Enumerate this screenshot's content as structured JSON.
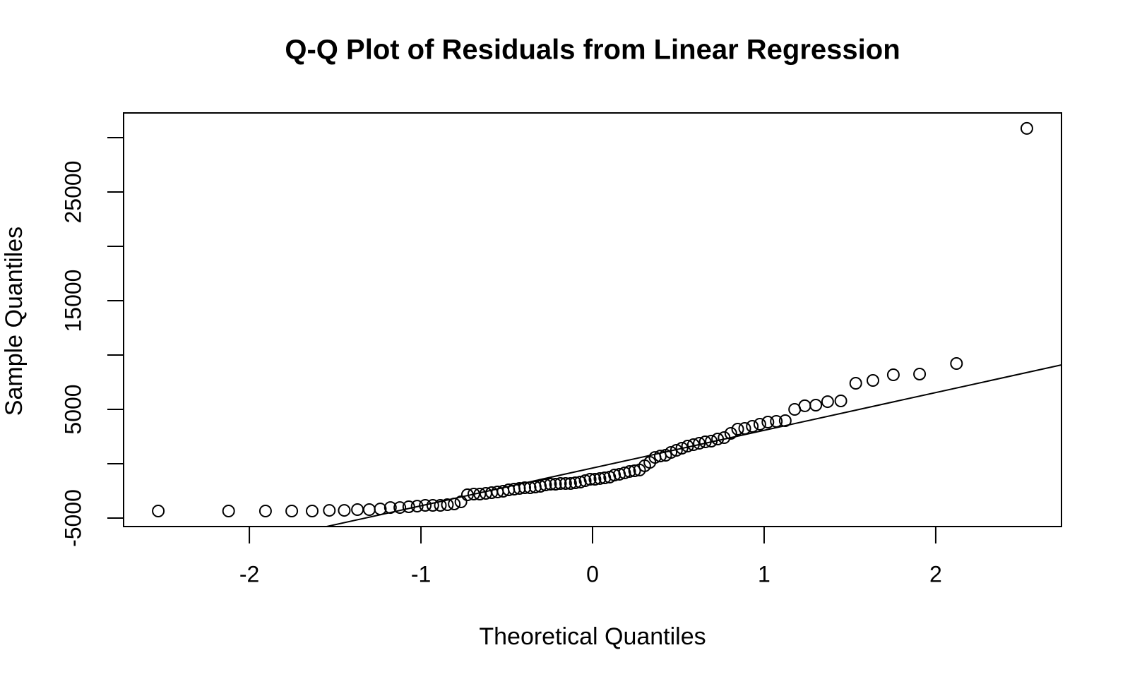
{
  "chart_data": {
    "type": "qq",
    "title": "Q-Q Plot of Residuals from Linear Regression",
    "x_label": "Theoretical Quantiles",
    "y_label": "Sample Quantiles",
    "x": [
      -2.531,
      -2.121,
      -1.906,
      -1.753,
      -1.634,
      -1.534,
      -1.447,
      -1.37,
      -1.301,
      -1.237,
      -1.178,
      -1.123,
      -1.071,
      -1.022,
      -0.975,
      -0.931,
      -0.887,
      -0.846,
      -0.806,
      -0.767,
      -0.729,
      -0.692,
      -0.657,
      -0.622,
      -0.588,
      -0.554,
      -0.521,
      -0.489,
      -0.457,
      -0.426,
      -0.395,
      -0.364,
      -0.334,
      -0.304,
      -0.274,
      -0.245,
      -0.216,
      -0.187,
      -0.157,
      -0.128,
      -0.1,
      -0.071,
      -0.043,
      -0.014,
      0.014,
      0.043,
      0.071,
      0.1,
      0.128,
      0.157,
      0.187,
      0.216,
      0.245,
      0.274,
      0.304,
      0.334,
      0.364,
      0.395,
      0.426,
      0.457,
      0.489,
      0.521,
      0.554,
      0.588,
      0.622,
      0.657,
      0.692,
      0.729,
      0.767,
      0.806,
      0.846,
      0.887,
      0.931,
      0.975,
      1.022,
      1.071,
      1.123,
      1.178,
      1.237,
      1.301,
      1.37,
      1.447,
      1.534,
      1.634,
      1.753,
      1.906,
      2.121,
      2.531
    ],
    "values": [
      -4350,
      -4350,
      -4350,
      -4350,
      -4350,
      -4290,
      -4290,
      -4220,
      -4220,
      -4160,
      -4030,
      -4030,
      -3960,
      -3900,
      -3830,
      -3830,
      -3830,
      -3770,
      -3700,
      -3510,
      -2860,
      -2790,
      -2790,
      -2730,
      -2660,
      -2600,
      -2530,
      -2400,
      -2340,
      -2270,
      -2210,
      -2210,
      -2140,
      -2080,
      -1950,
      -1880,
      -1880,
      -1820,
      -1820,
      -1820,
      -1750,
      -1690,
      -1560,
      -1430,
      -1430,
      -1360,
      -1300,
      -1230,
      -1040,
      -970,
      -840,
      -710,
      -650,
      -580,
      -190,
      130,
      580,
      710,
      780,
      1040,
      1230,
      1430,
      1620,
      1750,
      1880,
      2010,
      2080,
      2270,
      2400,
      2790,
      3180,
      3250,
      3440,
      3640,
      3830,
      3900,
      3960,
      5000,
      5330,
      5390,
      5710,
      5780,
      7400,
      7660,
      8180,
      8250,
      9220,
      30850
    ],
    "reference_line": {
      "intercept": -397,
      "slope": 3472
    },
    "color": "#000000",
    "xlim": [
      -2.733,
      2.733
    ],
    "xticks": [
      -2,
      -1,
      0,
      1,
      2
    ],
    "ylim": [
      -5779,
      32273
    ],
    "yticks": [
      -5000,
      {
        "value": 0,
        "label": null
      },
      5000,
      {
        "value": 10000,
        "label": null
      },
      15000,
      {
        "value": 20000,
        "label": null
      },
      25000,
      {
        "value": 30000,
        "label": null
      }
    ]
  }
}
